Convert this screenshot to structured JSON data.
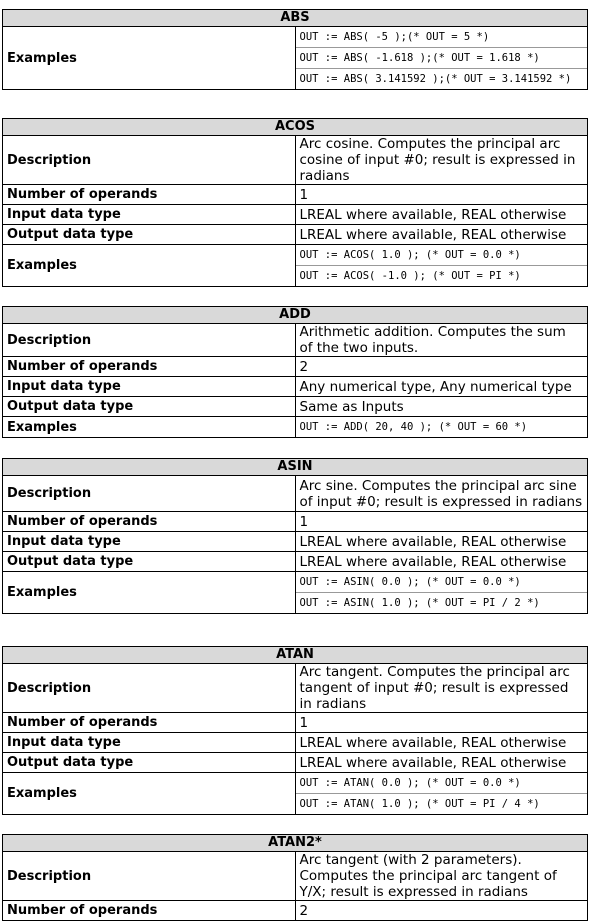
{
  "labels": {
    "description": "Description",
    "operands": "Number of operands",
    "input": "Input data type",
    "output": "Output data type",
    "examples": "Examples"
  },
  "abs": {
    "title": "ABS",
    "examples": [
      "OUT := ABS( -5 );(* OUT = 5 *)",
      "OUT := ABS( -1.618 );(* OUT = 1.618 *)",
      "OUT := ABS( 3.141592 );(* OUT = 3.141592 *)"
    ]
  },
  "acos": {
    "title": "ACOS",
    "description": "Arc cosine. Computes the principal arc cosine of input #0; result is expressed in radians",
    "operands": "1",
    "input": "LREAL where available, REAL otherwise",
    "output": "LREAL where available, REAL otherwise",
    "examples": [
      "OUT := ACOS( 1.0 ); (* OUT = 0.0 *)",
      "OUT := ACOS( -1.0 ); (* OUT = PI *)"
    ]
  },
  "add": {
    "title": "ADD",
    "description": "Arithmetic addition. Computes the sum of the two inputs.",
    "operands": "2",
    "input": "Any numerical type, Any numerical type",
    "output": "Same as Inputs",
    "examples": [
      "OUT := ADD( 20, 40 ); (* OUT = 60 *)"
    ]
  },
  "asin": {
    "title": "ASIN",
    "description": "Arc sine. Computes the principal arc sine of input #0; result is expressed in radians",
    "operands": "1",
    "input": "LREAL where available, REAL otherwise",
    "output": "LREAL where available, REAL otherwise",
    "examples": [
      "OUT := ASIN( 0.0 ); (* OUT = 0.0 *)",
      "OUT := ASIN( 1.0 ); (* OUT = PI / 2 *)"
    ]
  },
  "atan": {
    "title": "ATAN",
    "description": "Arc tangent. Computes the principal arc tangent of input #0; result is expressed in radians",
    "operands": "1",
    "input": "LREAL where available, REAL otherwise",
    "output": "LREAL where available, REAL otherwise",
    "examples": [
      "OUT := ATAN( 0.0 ); (* OUT = 0.0 *)",
      "OUT := ATAN( 1.0 ); (* OUT = PI / 4 *)"
    ]
  },
  "atan2": {
    "title": "ATAN2*",
    "description": "Arc tangent (with 2 parameters). Computes the principal arc tangent of Y/X; result is expressed in radians",
    "operands": "2"
  }
}
